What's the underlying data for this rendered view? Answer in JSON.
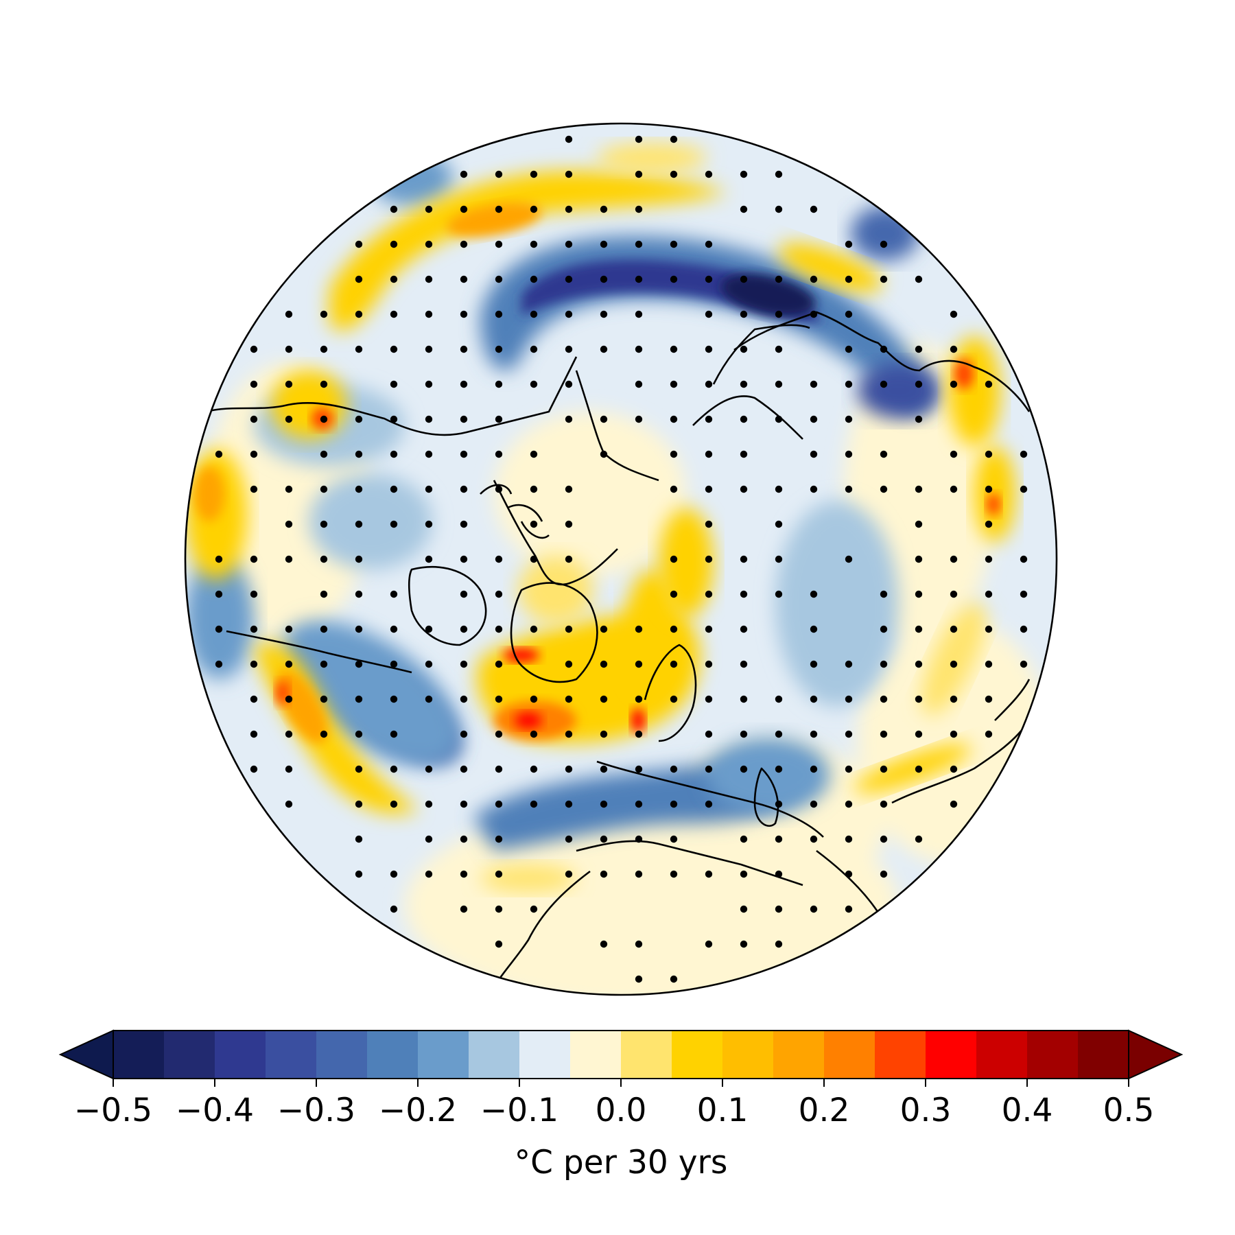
{
  "colorbar": {
    "label": "°C per 30 yrs",
    "ticks": [
      "−0.5",
      "−0.4",
      "−0.3",
      "−0.2",
      "−0.1",
      "0.0",
      "0.1",
      "0.2",
      "0.3",
      "0.4",
      "0.5"
    ],
    "levels": [
      -0.5,
      -0.45,
      -0.4,
      -0.35,
      -0.3,
      -0.25,
      -0.2,
      -0.15,
      -0.1,
      -0.05,
      0.0,
      0.05,
      0.1,
      0.15,
      0.2,
      0.25,
      0.3,
      0.35,
      0.4,
      0.45,
      0.5
    ],
    "extend": "both",
    "under_color": "#0e1a4e",
    "over_color": "#7a0000",
    "colors": [
      "#141d57",
      "#222a70",
      "#2f3990",
      "#3a4fa0",
      "#4467ad",
      "#4f80b9",
      "#6a9ccb",
      "#a7c7e0",
      "#e3edf6",
      "#fff6d2",
      "#ffe46e",
      "#ffd200",
      "#ffbe00",
      "#ffa400",
      "#ff8000",
      "#ff4300",
      "#ff0000",
      "#cc0000",
      "#a30000",
      "#800000"
    ]
  },
  "map": {
    "projection": "north polar stereographic",
    "colors": {
      "deep_blue": "#141d57",
      "mid_blue": "#3a4fa0",
      "light_blue": "#6a9ccb",
      "pale_blue": "#a7c7e0",
      "faint_blue": "#e3edf6",
      "faint_yellow": "#fff6d2",
      "yellow": "#ffd200",
      "orange": "#ffa400",
      "red": "#ff0000",
      "coast": "#000000",
      "stipple": "#000000"
    }
  }
}
